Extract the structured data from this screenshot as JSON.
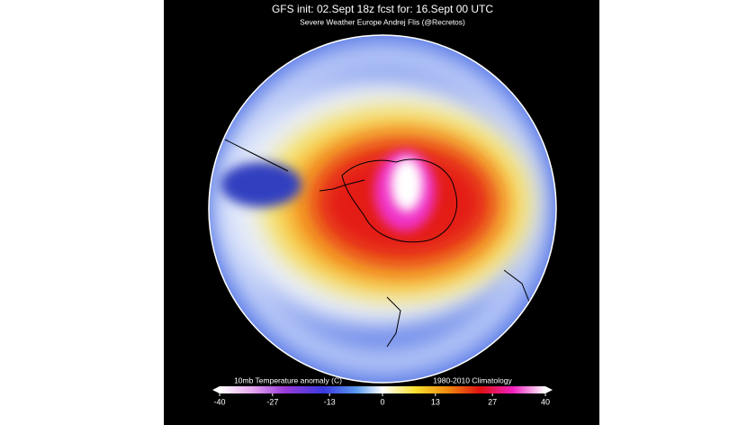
{
  "title": "GFS init: 02.Sept 18z  fcst for: 16.Sept  00 UTC",
  "subtitle": "Severe Weather Europe    Andrej Flis (@Recretos)",
  "colorbar": {
    "label": "10mb Temperature anomaly (C)",
    "note": "1980-2010 Climatology",
    "lim": [
      -40,
      40
    ],
    "ticks": [
      -40,
      -27,
      -13,
      0,
      13,
      27,
      40
    ]
  }
}
